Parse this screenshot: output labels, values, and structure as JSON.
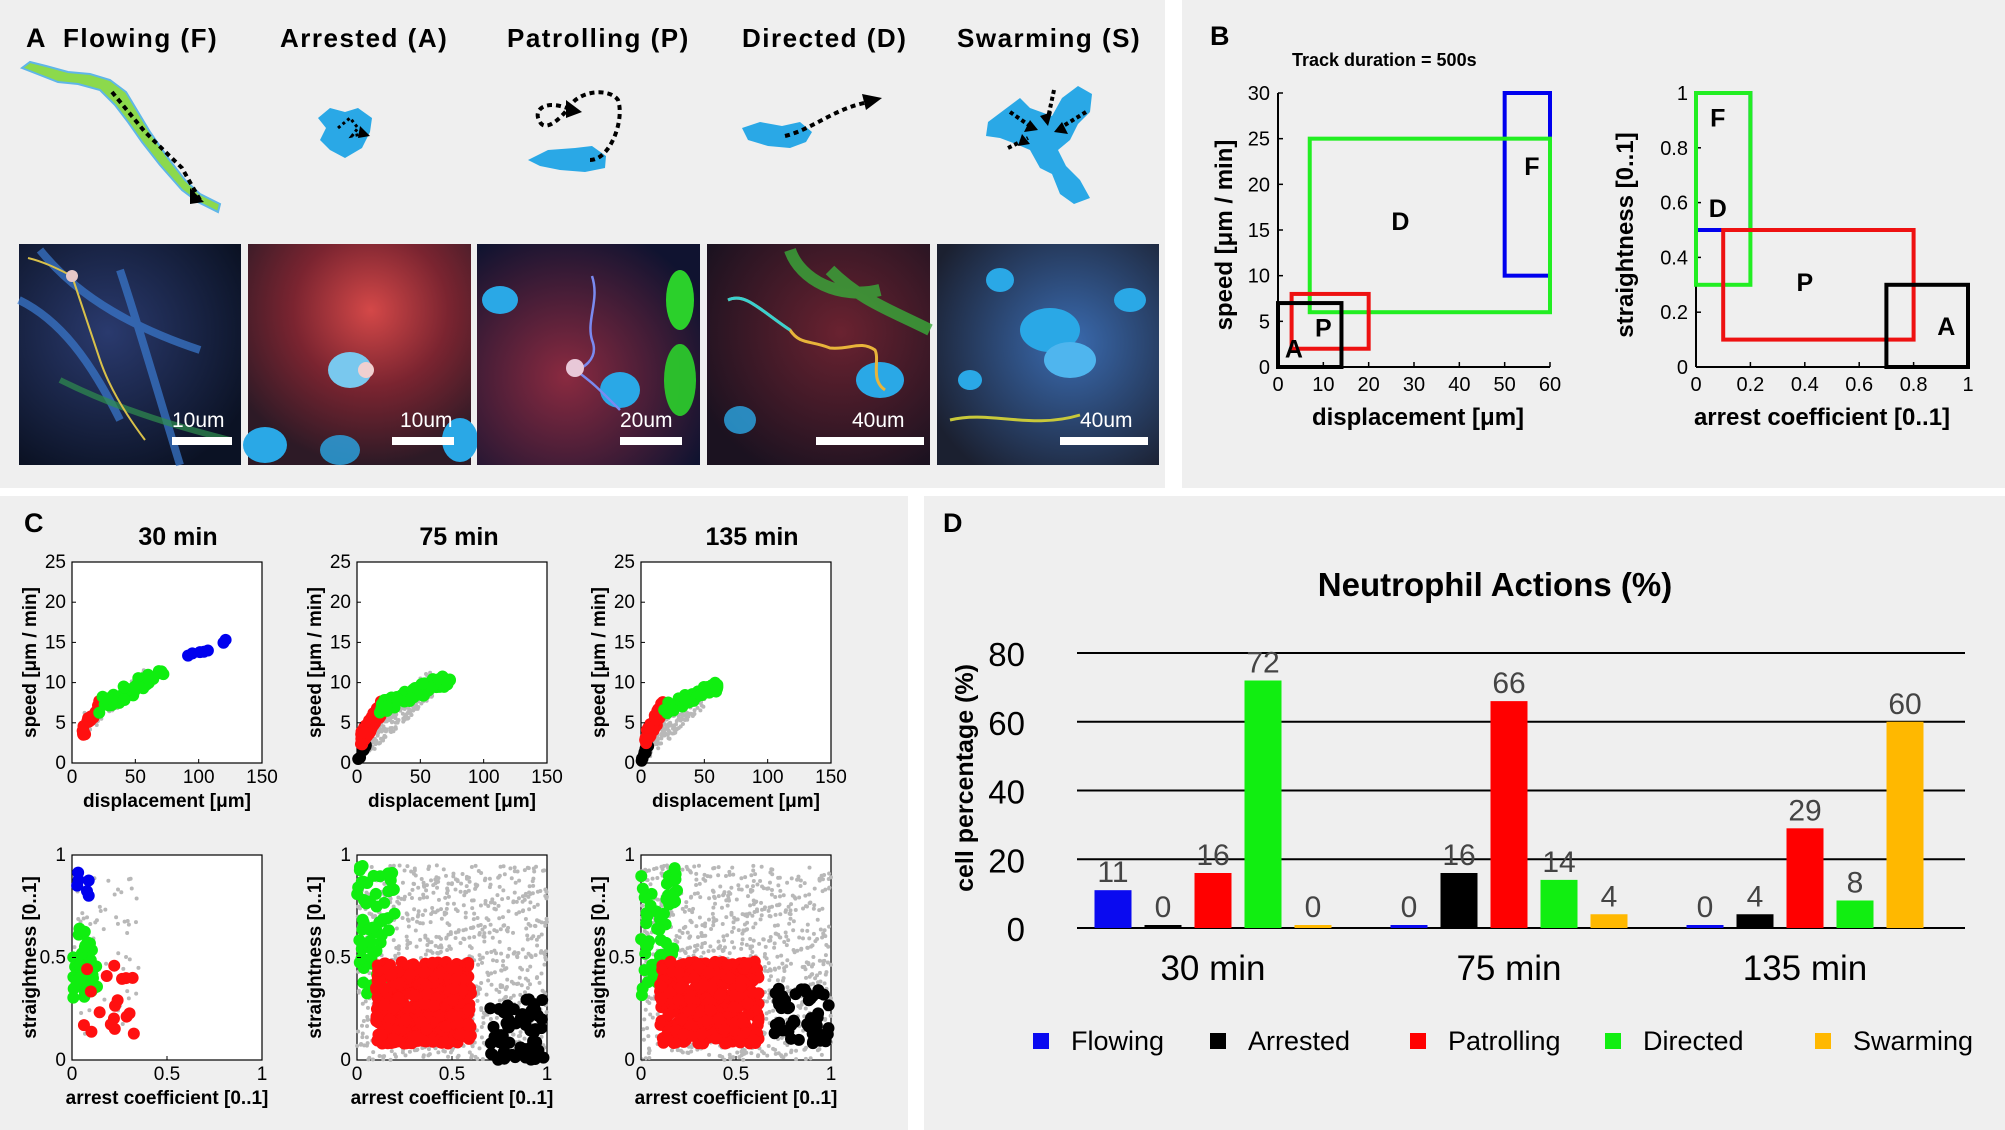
{
  "panelA": {
    "label": "A",
    "modes": [
      {
        "title": "Flowing (F)",
        "scale": "10um"
      },
      {
        "title": "Arrested (A)",
        "scale": "10um"
      },
      {
        "title": "Patrolling (P)",
        "scale": "20um"
      },
      {
        "title": "Directed (D)",
        "scale": "40um"
      },
      {
        "title": "Swarming (S)",
        "scale": "40um"
      }
    ]
  },
  "panelB": {
    "label": "B",
    "caption": "Track duration = 500s",
    "left": {
      "xlabel": "displacement [μm]",
      "ylabel": "speed [μm / min]",
      "xlim": [
        0,
        60
      ],
      "ylim": [
        0,
        30
      ],
      "xticks": [
        0,
        10,
        20,
        30,
        40,
        50,
        60
      ],
      "yticks": [
        0,
        5,
        10,
        15,
        20,
        25,
        30
      ],
      "boxes": [
        {
          "name": "F",
          "color": "#0000ee",
          "x0": 50,
          "x1": 60,
          "y0": 10,
          "y1": 30,
          "lx": 56,
          "ly": 22
        },
        {
          "name": "D",
          "color": "#22ee22",
          "x0": 7,
          "x1": 60,
          "y0": 6,
          "y1": 25,
          "lx": 27,
          "ly": 16
        },
        {
          "name": "P",
          "color": "#ee1111",
          "x0": 3,
          "x1": 20,
          "y0": 2,
          "y1": 8,
          "lx": 10,
          "ly": 4.3
        },
        {
          "name": "A",
          "color": "#000000",
          "x0": 0,
          "x1": 14,
          "y0": 0,
          "y1": 7,
          "lx": 3.5,
          "ly": 2
        }
      ]
    },
    "right": {
      "xlabel": "arrest coefficient [0..1]",
      "ylabel": "straightness [0..1]",
      "xlim": [
        0,
        1
      ],
      "ylim": [
        0,
        1
      ],
      "xticks": [
        "0",
        "0.2",
        "0.4",
        "0.6",
        "0.8",
        "1"
      ],
      "ytickvals": [
        0,
        0.2,
        0.4,
        0.6,
        0.8,
        1
      ],
      "yticks": [
        "0",
        "0.2",
        "0.4",
        "0.6",
        "0.8",
        "1"
      ],
      "boxes": [
        {
          "name": "F",
          "color": "#0000ee",
          "x0": 0,
          "x1": 0.2,
          "y0": 0.5,
          "y1": 1,
          "lx": 0.08,
          "ly": 0.91
        },
        {
          "name": "D",
          "color": "#22ee22",
          "x0": 0,
          "x1": 0.2,
          "y0": 0.3,
          "y1": 1,
          "lx": 0.08,
          "ly": 0.58
        },
        {
          "name": "P",
          "color": "#ee1111",
          "x0": 0.1,
          "x1": 0.8,
          "y0": 0.1,
          "y1": 0.5,
          "lx": 0.4,
          "ly": 0.31
        },
        {
          "name": "A",
          "color": "#000000",
          "x0": 0.7,
          "x1": 1,
          "y0": 0,
          "y1": 0.3,
          "lx": 0.92,
          "ly": 0.15
        }
      ]
    }
  },
  "panelC": {
    "label": "C",
    "columns": [
      {
        "title": "30 min"
      },
      {
        "title": "75 min"
      },
      {
        "title": "135 min"
      }
    ],
    "top": {
      "xlabel": "displacement [μm]",
      "ylabel": "speed [μm / min]",
      "xlim": [
        0,
        150
      ],
      "ylim": [
        0,
        25
      ],
      "xticks": [
        "0",
        "50",
        "100",
        "150"
      ],
      "xtickvals": [
        0,
        50,
        100,
        150
      ],
      "yticks": [
        "0",
        "5",
        "10",
        "15",
        "20",
        "25"
      ],
      "ytickvals": [
        0,
        5,
        10,
        15,
        20,
        25
      ]
    },
    "bottom": {
      "xlabel": "arrest coefficient [0..1]",
      "ylabel": "straightness [0..1]",
      "xlim": [
        0,
        1
      ],
      "ylim": [
        0,
        1
      ],
      "xticks": [
        "0",
        "0.5",
        "1"
      ],
      "xtickvals": [
        0,
        0.5,
        1
      ],
      "yticks": [
        "0",
        "0.5",
        "1"
      ],
      "ytickvals": [
        0,
        0.5,
        1
      ]
    }
  },
  "panelD": {
    "label": "D"
  },
  "chart_data": {
    "type": "bar",
    "title": "Neutrophil Actions (%)",
    "ylabel": "cell percentage (%)",
    "xlabel": "",
    "ylim": [
      0,
      80
    ],
    "yticks": [
      0,
      20,
      40,
      60,
      80
    ],
    "categories": [
      "30 min",
      "75 min",
      "135 min"
    ],
    "series": [
      {
        "name": "Flowing",
        "color": "#0a0af0",
        "values": [
          11,
          0,
          0
        ]
      },
      {
        "name": "Arrested",
        "color": "#000000",
        "values": [
          0,
          16,
          4
        ]
      },
      {
        "name": "Patrolling",
        "color": "#ff0000",
        "values": [
          16,
          66,
          29
        ]
      },
      {
        "name": "Directed",
        "color": "#11ee11",
        "values": [
          72,
          14,
          8
        ]
      },
      {
        "name": "Swarming",
        "color": "#ffb800",
        "values": [
          0,
          4,
          60
        ]
      }
    ]
  }
}
